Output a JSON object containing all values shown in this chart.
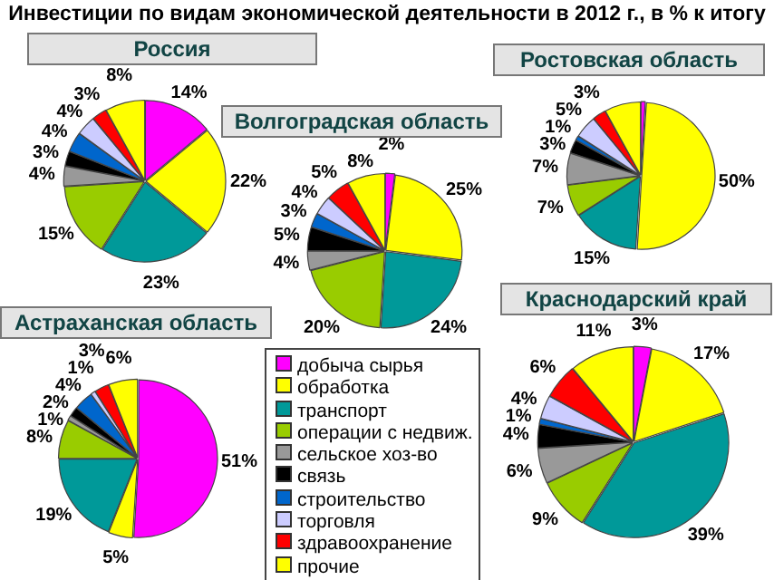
{
  "chart_data": [
    {
      "type": "pie",
      "title": "Инвестиции по видам экономической деятельности в 2012 г., в % к итогу",
      "subtitle": "Россия",
      "legend": "bottom",
      "categories": [
        "добыча сырья",
        "обработка",
        "транспорт",
        "операции с недвиж.",
        "сельское хоз-во",
        "связь",
        "строительство",
        "торговля",
        "здравоохранение",
        "прочие"
      ],
      "values": [
        14,
        22,
        23,
        15,
        4,
        3,
        4,
        4,
        3,
        8
      ],
      "value_labels": [
        "14%",
        "22%",
        "23%",
        "15%",
        "4%",
        "3%",
        "4%",
        "4%",
        "3%",
        "8%"
      ],
      "colors": [
        "#ff00ff",
        "#ffff00",
        "#009999",
        "#99cc00",
        "#999999",
        "#000000",
        "#0066cc",
        "#ccccff",
        "#ff0000",
        "#ffff00"
      ]
    },
    {
      "type": "pie",
      "subtitle": "Волгоградская область",
      "values": [
        2,
        25,
        24,
        20,
        4,
        5,
        3,
        4,
        5,
        8
      ],
      "value_labels": [
        "2%",
        "25%",
        "24%",
        "20%",
        "4%",
        "5%",
        "3%",
        "4%",
        "5%",
        "8%"
      ],
      "colors": [
        "#ff00ff",
        "#ffff00",
        "#009999",
        "#99cc00",
        "#999999",
        "#000000",
        "#0066cc",
        "#ccccff",
        "#ff0000",
        "#ffff00"
      ]
    },
    {
      "type": "pie",
      "subtitle": "Ростовская область",
      "values": [
        1,
        50,
        15,
        7,
        7,
        3,
        1,
        5,
        3,
        8
      ],
      "value_labels": [
        null,
        "50%",
        "15%",
        "7%",
        "7%",
        "3%",
        "1%",
        "5%",
        "3%",
        null
      ],
      "colors": [
        "#ff00ff",
        "#ffff00",
        "#009999",
        "#99cc00",
        "#999999",
        "#000000",
        "#0066cc",
        "#ccccff",
        "#ff0000",
        "#ffff00"
      ]
    },
    {
      "type": "pie",
      "subtitle": "Астраханская область",
      "values": [
        51,
        5,
        19,
        8,
        1,
        2,
        4,
        1,
        3,
        6
      ],
      "value_labels": [
        "51%",
        "5%",
        "19%",
        "8%",
        "1%",
        "2%",
        "4%",
        "1%",
        "3%",
        "6%"
      ],
      "colors": [
        "#ff00ff",
        "#ffff00",
        "#009999",
        "#99cc00",
        "#999999",
        "#000000",
        "#0066cc",
        "#ccccff",
        "#ff0000",
        "#ffff00"
      ]
    },
    {
      "type": "pie",
      "subtitle": "Краснодарский край",
      "values": [
        3,
        17,
        39,
        9,
        6,
        4,
        1,
        4,
        6,
        11
      ],
      "value_labels": [
        "3%",
        "17%",
        "39%",
        "9%",
        "6%",
        "4%",
        "1%",
        "4%",
        "6%",
        "11%"
      ],
      "colors": [
        "#ff00ff",
        "#ffff00",
        "#009999",
        "#99cc00",
        "#999999",
        "#000000",
        "#0066cc",
        "#ccccff",
        "#ff0000",
        "#ffff00"
      ]
    }
  ]
}
